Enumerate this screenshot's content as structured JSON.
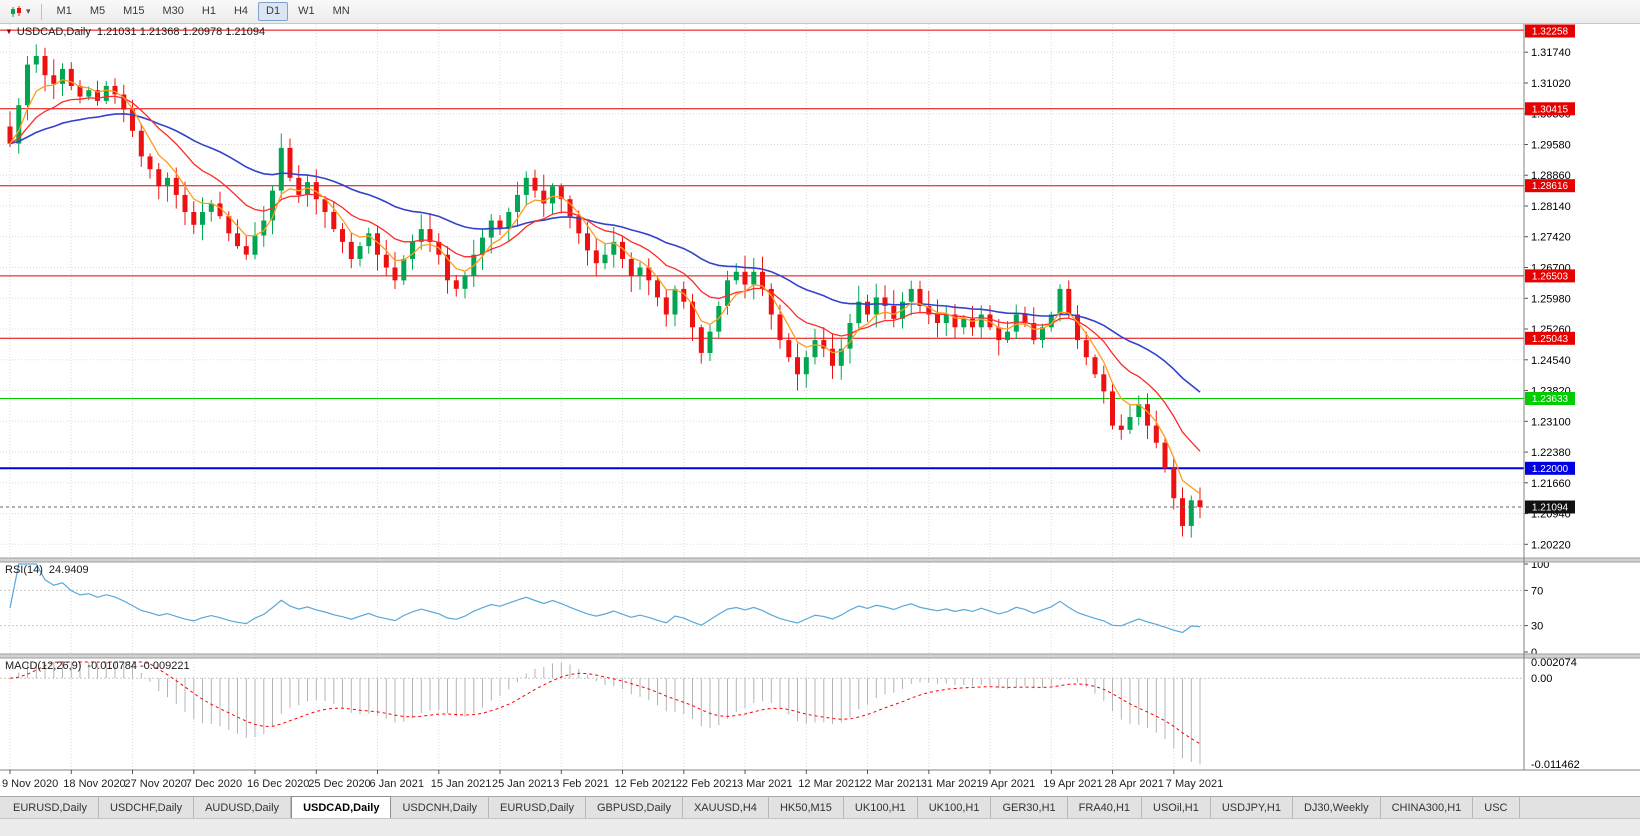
{
  "window": {
    "toolbar": {
      "timeframes": [
        "M1",
        "M5",
        "M15",
        "M30",
        "H1",
        "H4",
        "D1",
        "W1",
        "MN"
      ],
      "active_timeframe": "D1"
    },
    "icons": {
      "chart_dropdown": "▾",
      "pane_collapse": "▼"
    },
    "tabs": {
      "items": [
        "EURUSD,Daily",
        "USDCHF,Daily",
        "AUDUSD,Daily",
        "USDCAD,Daily",
        "USDCNH,Daily",
        "EURUSD,Daily",
        "GBPUSD,Daily",
        "XAUUSD,H4",
        "HK50,M15",
        "UK100,H1",
        "UK100,H1",
        "GER30,H1",
        "FRA40,H1",
        "USOil,H1",
        "USDJPY,H1",
        "DJ30,Weekly",
        "CHINA300,H1",
        "USC"
      ],
      "active": "USDCAD,Daily"
    }
  },
  "chart_data": {
    "type": "candlestick",
    "symbol": "USDCAD",
    "period": "Daily",
    "header": {
      "symbol_period": "USDCAD,Daily",
      "ohlc": "1.21031 1.21368 1.20978 1.21094"
    },
    "x_labels": [
      "9 Nov 2020",
      "18 Nov 2020",
      "27 Nov 2020",
      "7 Dec 2020",
      "16 Dec 2020",
      "25 Dec 2020",
      "6 Jan 2021",
      "15 Jan 2021",
      "25 Jan 2021",
      "3 Feb 2021",
      "12 Feb 2021",
      "22 Feb 2021",
      "3 Mar 2021",
      "12 Mar 2021",
      "22 Mar 2021",
      "31 Mar 2021",
      "9 Apr 2021",
      "19 Apr 2021",
      "28 Apr 2021",
      "7 May 2021"
    ],
    "label_step": 7,
    "closes": [
      1.296,
      1.305,
      1.3145,
      1.3165,
      1.312,
      1.31,
      1.3135,
      1.3095,
      1.307,
      1.3085,
      1.306,
      1.3095,
      1.3075,
      1.304,
      1.299,
      1.293,
      1.29,
      1.286,
      1.288,
      1.284,
      1.28,
      1.277,
      1.28,
      1.282,
      1.279,
      1.275,
      1.272,
      1.27,
      1.2745,
      1.278,
      1.285,
      1.295,
      1.288,
      1.284,
      1.287,
      1.283,
      1.28,
      1.276,
      1.273,
      1.269,
      1.272,
      1.275,
      1.27,
      1.267,
      1.264,
      1.269,
      1.273,
      1.276,
      1.273,
      1.27,
      1.264,
      1.262,
      1.265,
      1.27,
      1.274,
      1.278,
      1.276,
      1.28,
      1.284,
      1.288,
      1.285,
      1.282,
      1.286,
      1.283,
      1.279,
      1.275,
      1.271,
      1.268,
      1.27,
      1.273,
      1.269,
      1.265,
      1.267,
      1.264,
      1.26,
      1.256,
      1.262,
      1.259,
      1.253,
      1.247,
      1.252,
      1.258,
      1.264,
      1.266,
      1.263,
      1.266,
      1.262,
      1.256,
      1.25,
      1.246,
      1.242,
      1.246,
      1.25,
      1.248,
      1.244,
      1.248,
      1.254,
      1.259,
      1.256,
      1.26,
      1.258,
      1.255,
      1.259,
      1.262,
      1.258,
      1.256,
      1.254,
      1.256,
      1.253,
      1.255,
      1.253,
      1.256,
      1.253,
      1.25,
      1.252,
      1.256,
      1.254,
      1.25,
      1.253,
      1.256,
      1.262,
      1.256,
      1.25,
      1.246,
      1.242,
      1.238,
      1.23,
      1.229,
      1.232,
      1.235,
      1.23,
      1.226,
      1.22,
      1.213,
      1.2065,
      1.2125,
      1.21094
    ],
    "y_axis": {
      "min": 1.199,
      "max": 1.324,
      "tick_start": 1.2022,
      "tick_step": 0.0072,
      "tick_count": 17,
      "decimals": 5
    },
    "sr_lines": [
      {
        "price": 1.32258,
        "label": "1.32258",
        "color": "#e60000",
        "width": 1
      },
      {
        "price": 1.30415,
        "label": "1.30415",
        "color": "#e60000",
        "width": 1
      },
      {
        "price": 1.28616,
        "label": "1.28616",
        "color": "#e60000",
        "width": 1
      },
      {
        "price": 1.26503,
        "label": "1.26503",
        "color": "#e60000",
        "width": 1
      },
      {
        "price": 1.25043,
        "label": "1.25043",
        "color": "#e60000",
        "width": 1
      },
      {
        "price": 1.23633,
        "label": "1.23633",
        "color": "#00cc00",
        "width": 1
      },
      {
        "price": 1.22,
        "label": "1.22000",
        "color": "#0000e0",
        "width": 2
      }
    ],
    "current_price": {
      "price": 1.21094,
      "label": "1.21094",
      "badge_color": "#111111"
    },
    "moving_averages": [
      {
        "period": 34,
        "color": "#3342cc",
        "width": 1.6
      },
      {
        "period": 13,
        "color": "#ff2a2a",
        "width": 1.3
      },
      {
        "period": 5,
        "color": "#ff9c1e",
        "width": 1.3
      }
    ],
    "rsi": {
      "title": "RSI(14)",
      "value": "24.9409",
      "period": 14,
      "color": "#5aa7d8",
      "levels": [
        100,
        70,
        30,
        0
      ]
    },
    "macd": {
      "title": "MACD(12,26,9)",
      "values": "-0.010784 -0.009221",
      "fast": 12,
      "slow": 26,
      "signal": 9,
      "axis_labels": [
        "0.002074",
        "0.00",
        "-0.011462"
      ],
      "max": 0.002074,
      "min": -0.011462,
      "histogram_color": "#b4b4b4",
      "signal_color": "#ff0000"
    },
    "colors": {
      "bull": "#00a651",
      "bear": "#ee1111",
      "grid": "#dcdcdc",
      "background": "#ffffff"
    }
  }
}
